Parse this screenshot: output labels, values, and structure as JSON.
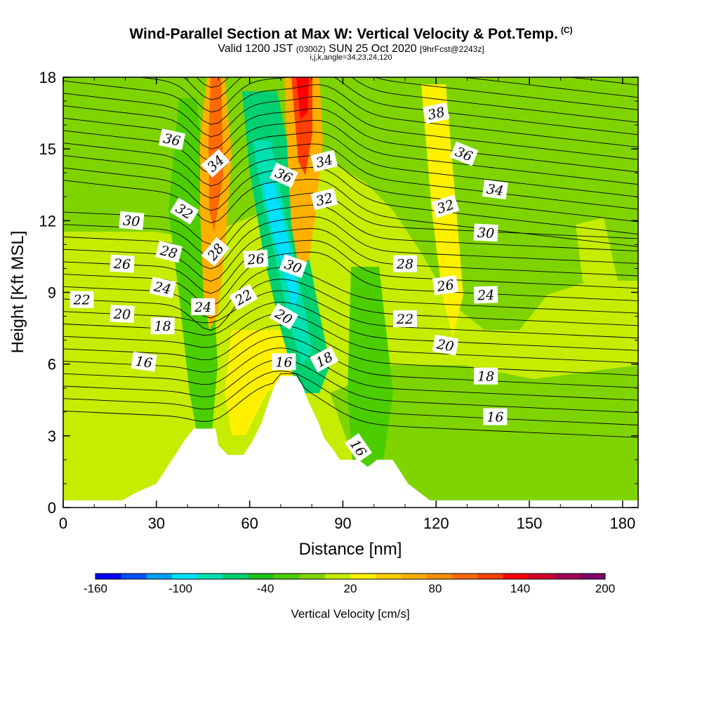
{
  "title": {
    "main": "Wind-Parallel Section at Max W: Vertical Velocity & Pot.Temp.",
    "units_tag": "(C)"
  },
  "subtitle": {
    "valid": "Valid 1200 JST",
    "utc": "(0300Z)",
    "date": "SUN 25 Oct 2020",
    "forecast": "[9hrFcst@2243z]",
    "params": "i,j,k,angle=34,23,24,120"
  },
  "chart_data": {
    "type": "heatmap",
    "xlabel": "Distance [nm]",
    "ylabel": "Height [Kft MSL]",
    "xlim": [
      0,
      185
    ],
    "ylim": [
      0,
      18
    ],
    "x_ticks": [
      "0",
      "30",
      "60",
      "90",
      "120",
      "150",
      "180"
    ],
    "y_ticks": [
      "0",
      "3",
      "6",
      "9",
      "12",
      "15",
      "18"
    ],
    "colorbar": {
      "label": "Vertical Velocity [cm/s]",
      "range": [
        -160,
        200
      ],
      "step": 20,
      "tick_labels": [
        "-160",
        "-100",
        "-40",
        "20",
        "80",
        "140",
        "200"
      ],
      "colors": [
        "#0000ff",
        "#0050ff",
        "#00a0ff",
        "#00e0ff",
        "#00e0b0",
        "#00d070",
        "#1ec01e",
        "#4ccd00",
        "#7fd400",
        "#c6ec00",
        "#fff000",
        "#ffd000",
        "#ffb000",
        "#ff9000",
        "#ff6a00",
        "#ff4000",
        "#ff0000",
        "#d0002a",
        "#a00050",
        "#800068"
      ]
    },
    "terrain_kft": [
      {
        "x": 0,
        "h": 0.3
      },
      {
        "x": 19,
        "h": 0.3
      },
      {
        "x": 23,
        "h": 0.6
      },
      {
        "x": 30,
        "h": 1.0
      },
      {
        "x": 33,
        "h": 1.6
      },
      {
        "x": 36,
        "h": 2.2
      },
      {
        "x": 39,
        "h": 2.8
      },
      {
        "x": 42,
        "h": 3.3
      },
      {
        "x": 49,
        "h": 3.3
      },
      {
        "x": 50,
        "h": 2.6
      },
      {
        "x": 53,
        "h": 2.2
      },
      {
        "x": 58,
        "h": 2.2
      },
      {
        "x": 61,
        "h": 2.8
      },
      {
        "x": 64,
        "h": 3.6
      },
      {
        "x": 66,
        "h": 4.4
      },
      {
        "x": 68,
        "h": 5.1
      },
      {
        "x": 70,
        "h": 5.5
      },
      {
        "x": 75,
        "h": 5.5
      },
      {
        "x": 77,
        "h": 5.1
      },
      {
        "x": 79,
        "h": 4.4
      },
      {
        "x": 82,
        "h": 3.6
      },
      {
        "x": 84,
        "h": 2.9
      },
      {
        "x": 87,
        "h": 2.4
      },
      {
        "x": 89,
        "h": 2.0
      },
      {
        "x": 95,
        "h": 2.0
      },
      {
        "x": 98,
        "h": 1.7
      },
      {
        "x": 101,
        "h": 2.0
      },
      {
        "x": 106,
        "h": 2.0
      },
      {
        "x": 108,
        "h": 1.6
      },
      {
        "x": 111,
        "h": 1.0
      },
      {
        "x": 115,
        "h": 0.6
      },
      {
        "x": 118,
        "h": 0.3
      },
      {
        "x": 185,
        "h": 0.3
      }
    ],
    "theta_labels": [
      {
        "value": "38",
        "x": 120,
        "y": 16.5,
        "rot": -12
      },
      {
        "value": "36",
        "x": 35,
        "y": 15.4,
        "rot": 12
      },
      {
        "value": "36",
        "x": 129,
        "y": 14.8,
        "rot": 22
      },
      {
        "value": "36",
        "x": 71,
        "y": 13.9,
        "rot": 24
      },
      {
        "value": "34",
        "x": 49,
        "y": 14.4,
        "rot": -42
      },
      {
        "value": "34",
        "x": 84,
        "y": 14.5,
        "rot": -14
      },
      {
        "value": "34",
        "x": 139,
        "y": 13.3,
        "rot": 8
      },
      {
        "value": "32",
        "x": 39,
        "y": 12.4,
        "rot": 32
      },
      {
        "value": "32",
        "x": 84,
        "y": 12.9,
        "rot": -14
      },
      {
        "value": "32",
        "x": 123,
        "y": 12.6,
        "rot": -18
      },
      {
        "value": "30",
        "x": 22,
        "y": 12.0,
        "rot": 5
      },
      {
        "value": "30",
        "x": 136,
        "y": 11.5,
        "rot": 3
      },
      {
        "value": "30",
        "x": 74,
        "y": 10.1,
        "rot": 20
      },
      {
        "value": "28",
        "x": 34,
        "y": 10.7,
        "rot": 14
      },
      {
        "value": "28",
        "x": 49,
        "y": 10.7,
        "rot": -50
      },
      {
        "value": "28",
        "x": 110,
        "y": 10.2,
        "rot": 0
      },
      {
        "value": "26",
        "x": 19,
        "y": 10.2,
        "rot": 3
      },
      {
        "value": "26",
        "x": 62,
        "y": 10.4,
        "rot": -4
      },
      {
        "value": "26",
        "x": 123,
        "y": 9.3,
        "rot": -8
      },
      {
        "value": "24",
        "x": 32,
        "y": 9.2,
        "rot": 12
      },
      {
        "value": "24",
        "x": 45,
        "y": 8.4,
        "rot": 0
      },
      {
        "value": "24",
        "x": 136,
        "y": 8.9,
        "rot": -2
      },
      {
        "value": "22",
        "x": 6,
        "y": 8.7,
        "rot": 0
      },
      {
        "value": "22",
        "x": 58,
        "y": 8.8,
        "rot": -30
      },
      {
        "value": "22",
        "x": 110,
        "y": 7.9,
        "rot": 0
      },
      {
        "value": "20",
        "x": 19,
        "y": 8.1,
        "rot": 3
      },
      {
        "value": "20",
        "x": 71,
        "y": 8.0,
        "rot": 30
      },
      {
        "value": "20",
        "x": 123,
        "y": 6.8,
        "rot": 10
      },
      {
        "value": "18",
        "x": 32,
        "y": 7.6,
        "rot": 0
      },
      {
        "value": "18",
        "x": 84,
        "y": 6.2,
        "rot": -28
      },
      {
        "value": "18",
        "x": 136,
        "y": 5.5,
        "rot": 0
      },
      {
        "value": "16",
        "x": 26,
        "y": 6.1,
        "rot": 8
      },
      {
        "value": "16",
        "x": 71,
        "y": 6.1,
        "rot": 0
      },
      {
        "value": "16",
        "x": 139,
        "y": 3.8,
        "rot": 0
      },
      {
        "value": "16",
        "x": 95,
        "y": 2.5,
        "rot": 55
      }
    ]
  }
}
